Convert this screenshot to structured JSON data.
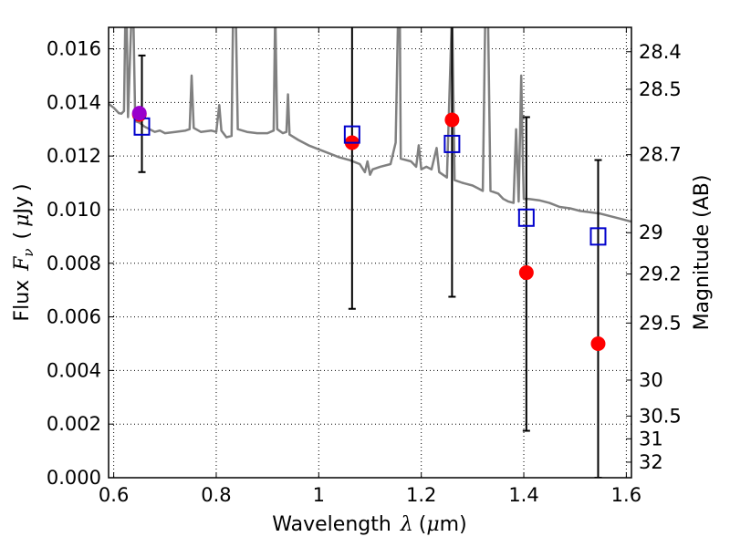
{
  "chart_data": {
    "type": "scatter",
    "xlabel_parts": {
      "text": "Wavelength",
      "symbol": "λ",
      "unit_open": "(",
      "unit_symbol": "μ",
      "unit_rest": "m)"
    },
    "ylabel_parts": {
      "text": "Flux",
      "symbol": "F",
      "subscript": "ν",
      "unit_open": "(",
      "unit_symbol": "μ",
      "unit_rest": "Jy",
      "unit_close": ")"
    },
    "y2label": "Magnitude (AB)",
    "xlim": [
      0.59,
      1.61
    ],
    "ylim": [
      0.0,
      0.0168
    ],
    "grid": true,
    "x_ticks": [
      {
        "value": 0.6,
        "label": "0.6"
      },
      {
        "value": 0.8,
        "label": "0.8"
      },
      {
        "value": 1.0,
        "label": "1"
      },
      {
        "value": 1.2,
        "label": "1.2"
      },
      {
        "value": 1.4,
        "label": "1.4"
      },
      {
        "value": 1.6,
        "label": "1.6"
      }
    ],
    "y_ticks": [
      {
        "value": 0.0,
        "label": "0.000"
      },
      {
        "value": 0.002,
        "label": "0.002"
      },
      {
        "value": 0.004,
        "label": "0.004"
      },
      {
        "value": 0.006,
        "label": "0.006"
      },
      {
        "value": 0.008,
        "label": "0.008"
      },
      {
        "value": 0.01,
        "label": "0.010"
      },
      {
        "value": 0.012,
        "label": "0.012"
      },
      {
        "value": 0.014,
        "label": "0.014"
      },
      {
        "value": 0.016,
        "label": "0.016"
      }
    ],
    "mag_ticks": [
      {
        "label": "28.4",
        "flux": 0.01589
      },
      {
        "label": "28.5",
        "flux": 0.01449
      },
      {
        "label": "28.7",
        "flux": 0.01205
      },
      {
        "label": "29",
        "flux": 0.00914
      },
      {
        "label": "29.2",
        "flux": 0.0076
      },
      {
        "label": "29.5",
        "flux": 0.00577
      },
      {
        "label": "30",
        "flux": 0.00364
      },
      {
        "label": "30.5",
        "flux": 0.0023
      },
      {
        "label": "31",
        "flux": 0.00145
      },
      {
        "label": "32",
        "flux": 0.00058
      }
    ],
    "colors": {
      "spectrum": "#808080",
      "observed": "#ff0000",
      "model": "#0000cc",
      "highlight": "#9900cc",
      "errorbar": "#000000",
      "grid": "#000000"
    },
    "spectrum": [
      [
        0.59,
        0.01395
      ],
      [
        0.6,
        0.0138
      ],
      [
        0.61,
        0.0136
      ],
      [
        0.615,
        0.01358
      ],
      [
        0.62,
        0.01368
      ],
      [
        0.623,
        0.0175
      ],
      [
        0.625,
        0.0175
      ],
      [
        0.628,
        0.01345
      ],
      [
        0.635,
        0.0175
      ],
      [
        0.638,
        0.0175
      ],
      [
        0.642,
        0.0133
      ],
      [
        0.65,
        0.01325
      ],
      [
        0.66,
        0.0131
      ],
      [
        0.67,
        0.013
      ],
      [
        0.68,
        0.0129
      ],
      [
        0.69,
        0.01295
      ],
      [
        0.7,
        0.01285
      ],
      [
        0.72,
        0.0129
      ],
      [
        0.74,
        0.01295
      ],
      [
        0.748,
        0.013
      ],
      [
        0.752,
        0.015
      ],
      [
        0.756,
        0.01305
      ],
      [
        0.77,
        0.0129
      ],
      [
        0.79,
        0.01295
      ],
      [
        0.8,
        0.0129
      ],
      [
        0.806,
        0.0139
      ],
      [
        0.81,
        0.01295
      ],
      [
        0.82,
        0.0127
      ],
      [
        0.83,
        0.01275
      ],
      [
        0.833,
        0.0175
      ],
      [
        0.838,
        0.0175
      ],
      [
        0.842,
        0.013
      ],
      [
        0.86,
        0.0129
      ],
      [
        0.88,
        0.01285
      ],
      [
        0.9,
        0.01285
      ],
      [
        0.912,
        0.01295
      ],
      [
        0.915,
        0.0175
      ],
      [
        0.919,
        0.013
      ],
      [
        0.93,
        0.01285
      ],
      [
        0.937,
        0.0129
      ],
      [
        0.94,
        0.0143
      ],
      [
        0.943,
        0.0128
      ],
      [
        0.96,
        0.0126
      ],
      [
        0.98,
        0.0124
      ],
      [
        1.0,
        0.01225
      ],
      [
        1.02,
        0.0121
      ],
      [
        1.04,
        0.01195
      ],
      [
        1.06,
        0.01185
      ],
      [
        1.08,
        0.0117
      ],
      [
        1.09,
        0.0114
      ],
      [
        1.095,
        0.0118
      ],
      [
        1.1,
        0.0113
      ],
      [
        1.105,
        0.0115
      ],
      [
        1.12,
        0.0116
      ],
      [
        1.14,
        0.0117
      ],
      [
        1.15,
        0.0125
      ],
      [
        1.155,
        0.0175
      ],
      [
        1.158,
        0.0175
      ],
      [
        1.16,
        0.0119
      ],
      [
        1.18,
        0.0118
      ],
      [
        1.19,
        0.0116
      ],
      [
        1.195,
        0.0124
      ],
      [
        1.2,
        0.0115
      ],
      [
        1.21,
        0.0116
      ],
      [
        1.22,
        0.0115
      ],
      [
        1.23,
        0.0123
      ],
      [
        1.235,
        0.0114
      ],
      [
        1.25,
        0.0112
      ],
      [
        1.26,
        0.0175
      ],
      [
        1.265,
        0.0111
      ],
      [
        1.28,
        0.011
      ],
      [
        1.3,
        0.0109
      ],
      [
        1.31,
        0.0108
      ],
      [
        1.32,
        0.0107
      ],
      [
        1.325,
        0.0175
      ],
      [
        1.33,
        0.0175
      ],
      [
        1.335,
        0.0107
      ],
      [
        1.35,
        0.0106
      ],
      [
        1.36,
        0.0104
      ],
      [
        1.37,
        0.0103
      ],
      [
        1.38,
        0.01025
      ],
      [
        1.385,
        0.013
      ],
      [
        1.39,
        0.0103
      ],
      [
        1.395,
        0.015
      ],
      [
        1.398,
        0.012
      ],
      [
        1.4,
        0.0104
      ],
      [
        1.41,
        0.0104
      ],
      [
        1.43,
        0.01035
      ],
      [
        1.45,
        0.01025
      ],
      [
        1.47,
        0.0101
      ],
      [
        1.49,
        0.01005
      ],
      [
        1.51,
        0.00995
      ],
      [
        1.53,
        0.0099
      ],
      [
        1.55,
        0.00985
      ],
      [
        1.57,
        0.00975
      ],
      [
        1.59,
        0.00965
      ],
      [
        1.61,
        0.00955
      ]
    ],
    "observed": [
      {
        "x": 0.65,
        "y": 0.01355
      },
      {
        "x": 1.065,
        "y": 0.0125
      },
      {
        "x": 1.26,
        "y": 0.01335
      },
      {
        "x": 1.405,
        "y": 0.00765
      },
      {
        "x": 1.545,
        "y": 0.005
      }
    ],
    "model": [
      {
        "x": 0.655,
        "y": 0.0131
      },
      {
        "x": 1.065,
        "y": 0.0128
      },
      {
        "x": 1.26,
        "y": 0.01245
      },
      {
        "x": 1.405,
        "y": 0.0097
      },
      {
        "x": 1.545,
        "y": 0.009
      }
    ],
    "highlight": [
      {
        "x": 0.65,
        "y": 0.0136
      }
    ],
    "errorbars": [
      {
        "x": 0.655,
        "low": 0.0114,
        "high": 0.01575,
        "capped": true
      },
      {
        "x": 1.065,
        "low": 0.0063,
        "high": 0.0172,
        "capped": false
      },
      {
        "x": 1.26,
        "low": 0.00675,
        "high": 0.0172,
        "capped": false
      },
      {
        "x": 1.405,
        "low": 0.00175,
        "high": 0.01345,
        "capped": true
      },
      {
        "x": 1.545,
        "low": 0.0,
        "high": 0.01185,
        "capped": true
      }
    ]
  }
}
